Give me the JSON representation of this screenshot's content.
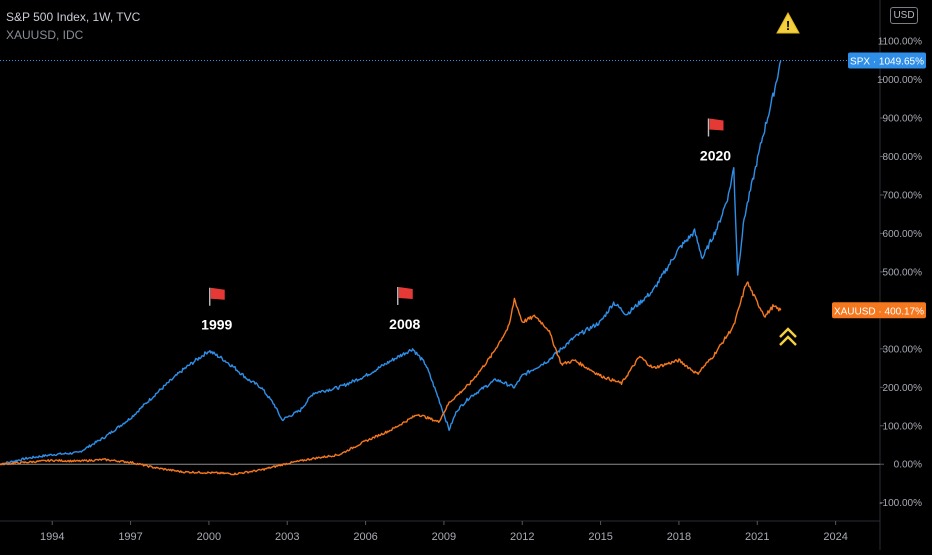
{
  "legend": {
    "primary": "S&P 500 Index, 1W, TVC",
    "secondary": "XAUUSD, IDC"
  },
  "currency_button": "USD",
  "colors": {
    "background": "#000000",
    "spx": "#2f8fe8",
    "xau": "#f5781f",
    "grid_zero": "#8c8c8c",
    "axis_text": "#a8abb3",
    "warning": "#f4d03f",
    "flag": "#e53935"
  },
  "chart_data": {
    "type": "line",
    "x_axis": {
      "ticks": [
        "1994",
        "1997",
        "2000",
        "2003",
        "2006",
        "2009",
        "2012",
        "2015",
        "2018",
        "2021",
        "2024"
      ],
      "range": [
        1992.0,
        2025.7
      ]
    },
    "y_axis": {
      "ticks": [
        "-100.00%",
        "0.00%",
        "100.00%",
        "200.00%",
        "300.00%",
        "400.00%",
        "500.00%",
        "600.00%",
        "700.00%",
        "800.00%",
        "900.00%",
        "1000.00%",
        "1100.00%"
      ],
      "range": [
        -145,
        1160
      ],
      "unit": "percent"
    },
    "series": [
      {
        "name": "SPX",
        "label": "SPX",
        "last_value_label": "1049.65%",
        "last_value": 1049.65,
        "points": [
          [
            1992.0,
            0
          ],
          [
            1993.0,
            15
          ],
          [
            1994.0,
            25
          ],
          [
            1995.0,
            30
          ],
          [
            1996.0,
            70
          ],
          [
            1997.0,
            120
          ],
          [
            1998.0,
            185
          ],
          [
            1999.0,
            245
          ],
          [
            1999.5,
            270
          ],
          [
            2000.0,
            295
          ],
          [
            2000.5,
            275
          ],
          [
            2001.0,
            250
          ],
          [
            2001.5,
            220
          ],
          [
            2002.0,
            200
          ],
          [
            2002.5,
            155
          ],
          [
            2002.8,
            115
          ],
          [
            2003.5,
            140
          ],
          [
            2004.0,
            185
          ],
          [
            2005.0,
            200
          ],
          [
            2006.0,
            230
          ],
          [
            2007.0,
            270
          ],
          [
            2007.8,
            300
          ],
          [
            2008.3,
            260
          ],
          [
            2008.8,
            170
          ],
          [
            2009.2,
            90
          ],
          [
            2009.5,
            140
          ],
          [
            2010.0,
            175
          ],
          [
            2011.0,
            220
          ],
          [
            2011.7,
            200
          ],
          [
            2012.0,
            230
          ],
          [
            2013.0,
            270
          ],
          [
            2014.0,
            330
          ],
          [
            2015.0,
            370
          ],
          [
            2015.5,
            420
          ],
          [
            2016.0,
            390
          ],
          [
            2016.5,
            420
          ],
          [
            2017.0,
            450
          ],
          [
            2018.0,
            560
          ],
          [
            2018.6,
            605
          ],
          [
            2018.9,
            535
          ],
          [
            2019.5,
            620
          ],
          [
            2019.9,
            700
          ],
          [
            2020.1,
            770
          ],
          [
            2020.25,
            495
          ],
          [
            2020.5,
            640
          ],
          [
            2020.9,
            760
          ],
          [
            2021.2,
            850
          ],
          [
            2021.6,
            955
          ],
          [
            2021.9,
            1049.65
          ]
        ]
      },
      {
        "name": "XAUUSD",
        "label": "XAUUSD",
        "last_value_label": "400.17%",
        "last_value": 400.17,
        "points": [
          [
            1992.0,
            0
          ],
          [
            1993.0,
            5
          ],
          [
            1994.0,
            10
          ],
          [
            1995.0,
            8
          ],
          [
            1996.0,
            12
          ],
          [
            1997.0,
            5
          ],
          [
            1998.0,
            -10
          ],
          [
            1999.0,
            -20
          ],
          [
            2000.0,
            -22
          ],
          [
            2001.0,
            -25
          ],
          [
            2002.0,
            -15
          ],
          [
            2003.0,
            2
          ],
          [
            2004.0,
            15
          ],
          [
            2005.0,
            25
          ],
          [
            2006.0,
            60
          ],
          [
            2007.0,
            90
          ],
          [
            2008.0,
            130
          ],
          [
            2008.8,
            110
          ],
          [
            2009.2,
            160
          ],
          [
            2010.0,
            210
          ],
          [
            2010.8,
            280
          ],
          [
            2011.5,
            360
          ],
          [
            2011.7,
            430
          ],
          [
            2012.0,
            370
          ],
          [
            2012.5,
            385
          ],
          [
            2013.0,
            350
          ],
          [
            2013.5,
            260
          ],
          [
            2014.0,
            270
          ],
          [
            2015.0,
            230
          ],
          [
            2015.8,
            210
          ],
          [
            2016.5,
            280
          ],
          [
            2017.0,
            250
          ],
          [
            2018.0,
            270
          ],
          [
            2018.7,
            235
          ],
          [
            2019.3,
            280
          ],
          [
            2019.8,
            330
          ],
          [
            2020.1,
            360
          ],
          [
            2020.6,
            475
          ],
          [
            2021.0,
            420
          ],
          [
            2021.3,
            385
          ],
          [
            2021.6,
            410
          ],
          [
            2021.9,
            400.17
          ]
        ]
      }
    ],
    "annotations": [
      {
        "label": "1999",
        "x": 2000.3,
        "y": 360,
        "marker": "flag"
      },
      {
        "label": "2008",
        "x": 2007.5,
        "y": 362,
        "marker": "flag"
      },
      {
        "label": "2020",
        "x": 2019.4,
        "y": 800,
        "marker": "flag"
      }
    ],
    "reference_line": {
      "y": 1049.65,
      "style": "dotted"
    },
    "grid": false
  }
}
